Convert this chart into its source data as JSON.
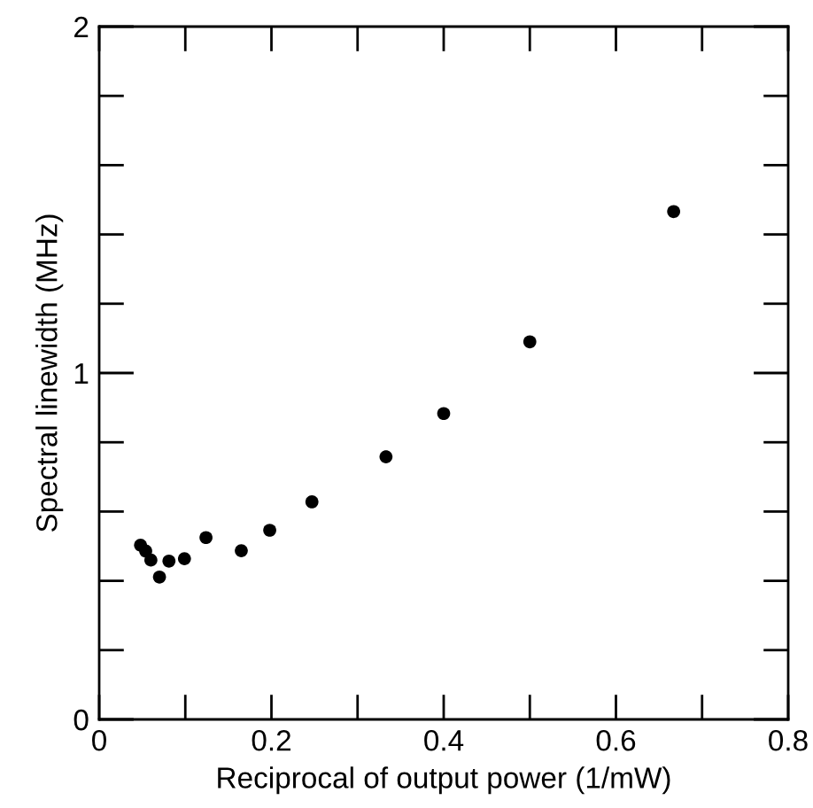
{
  "chart_data": {
    "type": "scatter",
    "xlabel": "Reciprocal of output power (1/mW)",
    "ylabel": "Spectral linewidth (MHz)",
    "x": [
      0.048,
      0.054,
      0.06,
      0.07,
      0.081,
      0.099,
      0.124,
      0.165,
      0.198,
      0.247,
      0.333,
      0.4,
      0.5,
      0.667
    ],
    "values": [
      0.503,
      0.486,
      0.46,
      0.411,
      0.457,
      0.464,
      0.525,
      0.487,
      0.546,
      0.628,
      0.758,
      0.883,
      1.09,
      1.466
    ],
    "color": "#000000",
    "marker": "circle",
    "grid": false,
    "legend": false,
    "xlim": [
      0,
      0.8
    ],
    "ylim": [
      0,
      2
    ],
    "xticks": [
      0,
      {
        "value": 0.1,
        "label": null
      },
      0.2,
      {
        "value": 0.3,
        "label": null
      },
      0.4,
      {
        "value": 0.5,
        "label": null
      },
      0.6,
      {
        "value": 0.7,
        "label": null
      },
      0.8
    ],
    "yticks": [
      0,
      {
        "value": 0.2,
        "label": null
      },
      {
        "value": 0.4,
        "label": null
      },
      {
        "value": 0.6,
        "label": null
      },
      {
        "value": 0.8,
        "label": null
      },
      1,
      {
        "value": 1.2,
        "label": null
      },
      {
        "value": 1.4,
        "label": null
      },
      {
        "value": 1.6,
        "label": null
      },
      {
        "value": 1.8,
        "label": null
      },
      2
    ]
  }
}
